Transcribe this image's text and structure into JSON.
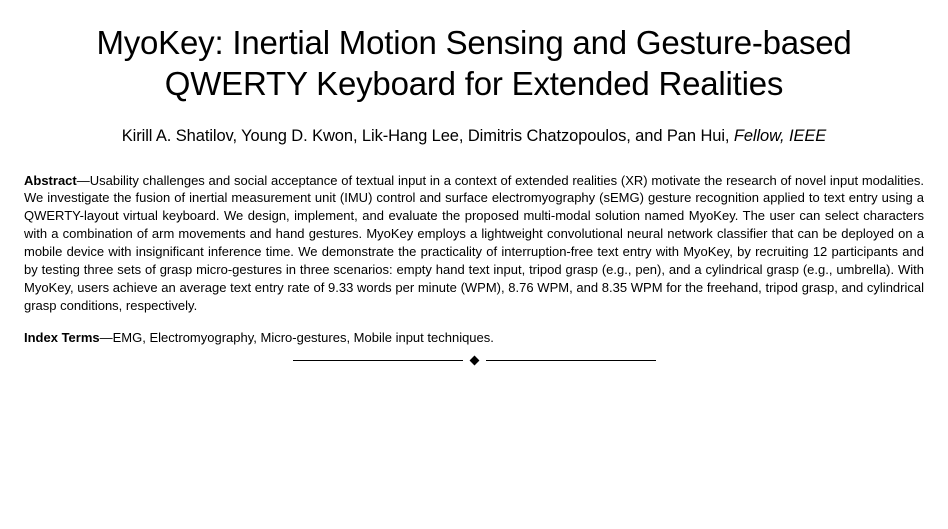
{
  "title": "MyoKey: Inertial Motion Sensing and Gesture-based QWERTY Keyboard for Extended Realities",
  "authors_line": "Kirill A. Shatilov, Young D. Kwon, Lik-Hang Lee, Dimitris Chatzopoulos, and Pan Hui, ",
  "affiliation": "Fellow, IEEE",
  "abstract_label": "Abstract",
  "abstract_text": "—Usability challenges and social acceptance of textual input in a context of extended realities (XR) motivate the research of novel input modalities. We investigate the fusion of inertial measurement unit (IMU) control and surface electromyography (sEMG) gesture recognition applied to text entry using a QWERTY-layout virtual keyboard. We design, implement, and evaluate the proposed multi-modal solution named MyoKey. The user can select characters with a combination of arm movements and hand gestures. MyoKey employs a lightweight convolutional neural network classifier that can be deployed on a mobile device with insignificant inference time. We demonstrate the practicality of interruption-free text entry with MyoKey, by recruiting 12 participants and by testing three sets of grasp micro-gestures in three scenarios: empty hand text input, tripod grasp (e.g., pen), and a cylindrical grasp (e.g., umbrella). With MyoKey, users achieve an average text entry rate of 9.33 words per minute (WPM), 8.76 WPM, and 8.35 WPM for the freehand, tripod grasp, and cylindrical grasp conditions, respectively.",
  "index_terms_label": "Index Terms",
  "index_terms_text": "—EMG, Electromyography, Micro-gestures, Mobile input techniques.",
  "style": {
    "background": "#ffffff",
    "text_color": "#000000",
    "title_fontsize": 33,
    "authors_fontsize": 16.5,
    "body_fontsize": 13,
    "divider_rule_width": 170,
    "divider_color": "#000000"
  }
}
